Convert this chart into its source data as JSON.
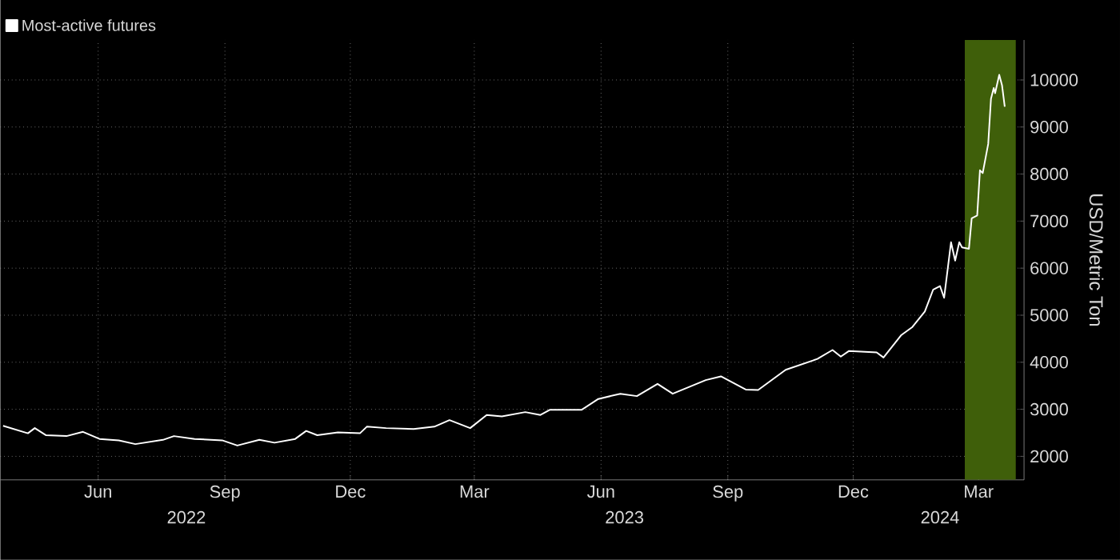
{
  "chart_data": {
    "type": "line",
    "legend": "top left",
    "series": [
      {
        "name": "Most-active futures",
        "color": "#ffffff",
        "x": [
          "2022-04-07",
          "2022-04-25",
          "2022-04-30",
          "2022-05-08",
          "2022-05-23",
          "2022-06-04",
          "2022-06-16",
          "2022-06-30",
          "2022-07-12",
          "2022-08-01",
          "2022-08-09",
          "2022-08-24",
          "2022-09-13",
          "2022-09-24",
          "2022-10-10",
          "2022-10-21",
          "2022-11-05",
          "2022-11-13",
          "2022-11-21",
          "2022-12-06",
          "2022-12-22",
          "2022-12-27",
          "2023-01-10",
          "2023-01-30",
          "2023-02-14",
          "2023-02-25",
          "2023-03-12",
          "2023-03-24",
          "2023-04-04",
          "2023-04-21",
          "2023-05-02",
          "2023-05-09",
          "2023-05-14",
          "2023-06-01",
          "2023-06-13",
          "2023-06-29",
          "2023-07-11",
          "2023-07-26",
          "2023-08-06",
          "2023-08-30",
          "2023-09-10",
          "2023-09-28",
          "2023-10-07",
          "2023-10-27",
          "2023-11-19",
          "2023-11-30",
          "2023-12-06",
          "2023-12-12",
          "2024-01-01",
          "2024-01-06",
          "2024-01-19",
          "2024-01-27",
          "2024-02-05",
          "2024-02-11",
          "2024-02-16",
          "2024-02-19",
          "2024-02-24",
          "2024-02-27",
          "2024-03-01",
          "2024-03-03",
          "2024-03-08",
          "2024-03-10",
          "2024-03-14",
          "2024-03-16",
          "2024-03-18",
          "2024-03-22",
          "2024-03-24",
          "2024-03-26",
          "2024-03-27",
          "2024-03-30",
          "2024-04-01",
          "2024-04-03"
        ],
        "values": [
          2650,
          2490,
          2600,
          2450,
          2430,
          2520,
          2370,
          2340,
          2260,
          2350,
          2430,
          2370,
          2340,
          2230,
          2350,
          2290,
          2370,
          2540,
          2450,
          2510,
          2490,
          2630,
          2600,
          2580,
          2630,
          2770,
          2600,
          2880,
          2850,
          2940,
          2880,
          2990,
          2990,
          2990,
          3220,
          3330,
          3280,
          3540,
          3330,
          3620,
          3700,
          3420,
          3410,
          3840,
          4070,
          4260,
          4120,
          4240,
          4210,
          4100,
          4580,
          4750,
          5080,
          5540,
          5620,
          5370,
          6550,
          6160,
          6550,
          6440,
          6410,
          7060,
          7120,
          8080,
          8020,
          8640,
          9600,
          9830,
          9720,
          10110,
          9890,
          9430
        ]
      }
    ],
    "xlim": [
      "2022-04-05",
      "2024-04-17"
    ],
    "xticks": [
      {
        "value": "2022-06-15",
        "label": "Jun"
      },
      {
        "value": "2022-09-15",
        "label": "Sep"
      },
      {
        "value": "2022-12-15",
        "label": "Dec"
      },
      {
        "value": "2023-03-15",
        "label": "Mar"
      },
      {
        "value": "2023-06-15",
        "label": "Jun"
      },
      {
        "value": "2023-09-15",
        "label": "Sep"
      },
      {
        "value": "2023-12-15",
        "label": "Dec"
      },
      {
        "value": "2024-03-15",
        "label": "Mar"
      }
    ],
    "x2lim": [
      "2022-04-05",
      "2024-04-17"
    ],
    "x2ticks": [
      {
        "value": "2022-08-18",
        "label": "2022"
      },
      {
        "value": "2023-07-02",
        "label": "2023"
      },
      {
        "value": "2024-02-16",
        "label": "2024"
      }
    ],
    "ylim": [
      1500,
      10850
    ],
    "yticks": [
      2000,
      3000,
      4000,
      5000,
      6000,
      7000,
      8000,
      9000,
      10000
    ],
    "ylabel": "USD/Metric Ton",
    "grid": true,
    "bands": [
      {
        "axis": "x",
        "from": "2024-03-05",
        "to": "2024-04-11",
        "color": "#3f5f0a"
      }
    ]
  }
}
